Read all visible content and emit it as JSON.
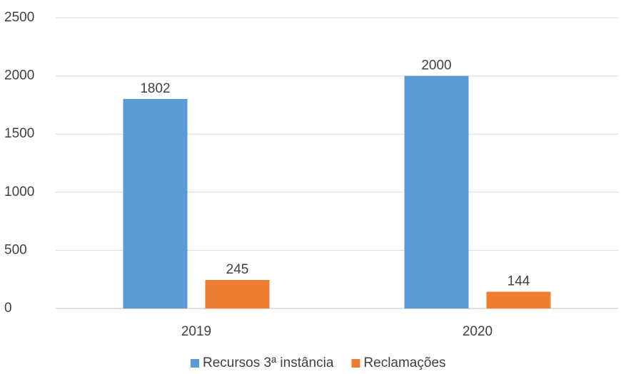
{
  "chart_data": {
    "type": "bar",
    "categories": [
      "2019",
      "2020"
    ],
    "series": [
      {
        "name": "Recursos 3ª instância",
        "color": "#5b9bd5",
        "values": [
          1802,
          2000
        ]
      },
      {
        "name": "Reclamações",
        "color": "#ed7d31",
        "values": [
          245,
          144
        ]
      }
    ],
    "ylim": [
      0,
      2500
    ],
    "yticks": [
      0,
      500,
      1000,
      1500,
      2000,
      2500
    ],
    "grid": true,
    "legend": "bottom"
  }
}
